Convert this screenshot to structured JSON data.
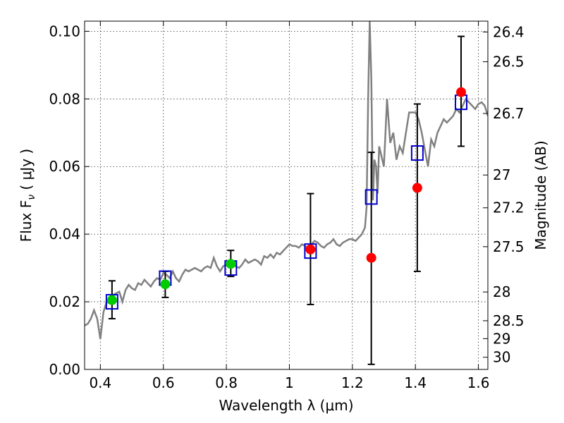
{
  "chart_data": {
    "type": "scatter",
    "xlabel": "Wavelength  λ (μm)",
    "ylabel": "Flux  F",
    "ylabel_sub": "ν",
    "ylabel_unit": "  ( μJy )",
    "y2label": "Magnitude (AB)",
    "xlim": [
      0.35,
      1.63
    ],
    "ylim": [
      0.0,
      0.103
    ],
    "grid": true,
    "x_ticks": [
      {
        "value": 0.4,
        "label": "0.4"
      },
      {
        "value": 0.6,
        "label": "0.6"
      },
      {
        "value": 0.8,
        "label": "0.8"
      },
      {
        "value": 1.0,
        "label": "1"
      },
      {
        "value": 1.2,
        "label": "1.2"
      },
      {
        "value": 1.4,
        "label": "1.4"
      },
      {
        "value": 1.6,
        "label": "1.6"
      }
    ],
    "y_ticks": [
      {
        "value": 0.0,
        "label": "0.00"
      },
      {
        "value": 0.02,
        "label": "0.02"
      },
      {
        "value": 0.04,
        "label": "0.04"
      },
      {
        "value": 0.06,
        "label": "0.06"
      },
      {
        "value": 0.08,
        "label": "0.08"
      },
      {
        "value": 0.1,
        "label": "0.10"
      }
    ],
    "y2_ticks": [
      {
        "flux": 0.0998,
        "label": "26.4"
      },
      {
        "flux": 0.091,
        "label": "26.5"
      },
      {
        "flux": 0.0757,
        "label": "26.7"
      },
      {
        "flux": 0.0575,
        "label": "27"
      },
      {
        "flux": 0.0478,
        "label": "27.2"
      },
      {
        "flux": 0.0363,
        "label": "27.5"
      },
      {
        "flux": 0.0229,
        "label": "28"
      },
      {
        "flux": 0.0144,
        "label": "28.5"
      },
      {
        "flux": 0.0091,
        "label": "29"
      },
      {
        "flux": 0.0036,
        "label": "30"
      }
    ],
    "series": [
      {
        "kind": "line",
        "color": "#808080",
        "points": [
          [
            0.35,
            0.013
          ],
          [
            0.36,
            0.0135
          ],
          [
            0.37,
            0.015
          ],
          [
            0.38,
            0.0175
          ],
          [
            0.39,
            0.015
          ],
          [
            0.4,
            0.009
          ],
          [
            0.41,
            0.017
          ],
          [
            0.42,
            0.02
          ],
          [
            0.43,
            0.0195
          ],
          [
            0.44,
            0.022
          ],
          [
            0.45,
            0.0225
          ],
          [
            0.46,
            0.023
          ],
          [
            0.47,
            0.02
          ],
          [
            0.48,
            0.0235
          ],
          [
            0.49,
            0.025
          ],
          [
            0.5,
            0.024
          ],
          [
            0.51,
            0.0235
          ],
          [
            0.52,
            0.0255
          ],
          [
            0.53,
            0.025
          ],
          [
            0.54,
            0.0265
          ],
          [
            0.55,
            0.0255
          ],
          [
            0.56,
            0.0245
          ],
          [
            0.57,
            0.026
          ],
          [
            0.58,
            0.027
          ],
          [
            0.59,
            0.0265
          ],
          [
            0.6,
            0.0285
          ],
          [
            0.61,
            0.028
          ],
          [
            0.62,
            0.027
          ],
          [
            0.63,
            0.029
          ],
          [
            0.64,
            0.027
          ],
          [
            0.65,
            0.026
          ],
          [
            0.66,
            0.028
          ],
          [
            0.67,
            0.0295
          ],
          [
            0.68,
            0.029
          ],
          [
            0.69,
            0.0295
          ],
          [
            0.7,
            0.03
          ],
          [
            0.71,
            0.0295
          ],
          [
            0.72,
            0.029
          ],
          [
            0.73,
            0.03
          ],
          [
            0.74,
            0.0305
          ],
          [
            0.75,
            0.03
          ],
          [
            0.76,
            0.033
          ],
          [
            0.77,
            0.0305
          ],
          [
            0.78,
            0.029
          ],
          [
            0.79,
            0.0305
          ],
          [
            0.8,
            0.031
          ],
          [
            0.81,
            0.031
          ],
          [
            0.82,
            0.0315
          ],
          [
            0.83,
            0.0305
          ],
          [
            0.84,
            0.03
          ],
          [
            0.85,
            0.031
          ],
          [
            0.86,
            0.0325
          ],
          [
            0.87,
            0.0315
          ],
          [
            0.88,
            0.032
          ],
          [
            0.89,
            0.0325
          ],
          [
            0.9,
            0.032
          ],
          [
            0.91,
            0.031
          ],
          [
            0.92,
            0.0335
          ],
          [
            0.93,
            0.033
          ],
          [
            0.94,
            0.034
          ],
          [
            0.95,
            0.033
          ],
          [
            0.96,
            0.0345
          ],
          [
            0.97,
            0.034
          ],
          [
            0.98,
            0.035
          ],
          [
            0.99,
            0.036
          ],
          [
            1.0,
            0.037
          ],
          [
            1.01,
            0.0365
          ],
          [
            1.02,
            0.0365
          ],
          [
            1.03,
            0.036
          ],
          [
            1.04,
            0.037
          ],
          [
            1.05,
            0.0365
          ],
          [
            1.06,
            0.0355
          ],
          [
            1.07,
            0.037
          ],
          [
            1.08,
            0.038
          ],
          [
            1.09,
            0.0375
          ],
          [
            1.1,
            0.0365
          ],
          [
            1.11,
            0.036
          ],
          [
            1.12,
            0.037
          ],
          [
            1.13,
            0.0375
          ],
          [
            1.14,
            0.0385
          ],
          [
            1.15,
            0.037
          ],
          [
            1.16,
            0.0365
          ],
          [
            1.17,
            0.0375
          ],
          [
            1.18,
            0.038
          ],
          [
            1.19,
            0.0385
          ],
          [
            1.2,
            0.0385
          ],
          [
            1.21,
            0.038
          ],
          [
            1.22,
            0.039
          ],
          [
            1.23,
            0.04
          ],
          [
            1.24,
            0.042
          ],
          [
            1.245,
            0.048
          ],
          [
            1.25,
            0.08
          ],
          [
            1.255,
            0.103
          ],
          [
            1.26,
            0.086
          ],
          [
            1.265,
            0.05
          ],
          [
            1.27,
            0.062
          ],
          [
            1.275,
            0.06
          ],
          [
            1.28,
            0.052
          ],
          [
            1.285,
            0.066
          ],
          [
            1.29,
            0.064
          ],
          [
            1.3,
            0.06
          ],
          [
            1.305,
            0.07
          ],
          [
            1.31,
            0.08
          ],
          [
            1.32,
            0.067
          ],
          [
            1.33,
            0.07
          ],
          [
            1.34,
            0.062
          ],
          [
            1.35,
            0.066
          ],
          [
            1.36,
            0.064
          ],
          [
            1.37,
            0.07
          ],
          [
            1.38,
            0.076
          ],
          [
            1.39,
            0.076
          ],
          [
            1.4,
            0.076
          ],
          [
            1.41,
            0.074
          ],
          [
            1.42,
            0.07
          ],
          [
            1.43,
            0.065
          ],
          [
            1.44,
            0.06
          ],
          [
            1.45,
            0.068
          ],
          [
            1.46,
            0.066
          ],
          [
            1.47,
            0.07
          ],
          [
            1.48,
            0.072
          ],
          [
            1.49,
            0.074
          ],
          [
            1.5,
            0.073
          ],
          [
            1.51,
            0.074
          ],
          [
            1.52,
            0.075
          ],
          [
            1.53,
            0.077
          ],
          [
            1.54,
            0.076
          ],
          [
            1.55,
            0.078
          ],
          [
            1.56,
            0.08
          ],
          [
            1.57,
            0.079
          ],
          [
            1.58,
            0.078
          ],
          [
            1.59,
            0.077
          ],
          [
            1.6,
            0.0785
          ],
          [
            1.61,
            0.079
          ],
          [
            1.62,
            0.078
          ],
          [
            1.63,
            0.075
          ]
        ]
      },
      {
        "kind": "errorbars",
        "color": "#000000",
        "points": [
          {
            "x": 0.437,
            "low": 0.015,
            "high": 0.0262
          },
          {
            "x": 0.606,
            "low": 0.0213,
            "high": 0.029
          },
          {
            "x": 0.814,
            "low": 0.0275,
            "high": 0.0352
          },
          {
            "x": 1.067,
            "low": 0.0192,
            "high": 0.052
          },
          {
            "x": 1.26,
            "low": 0.0015,
            "high": 0.0642
          },
          {
            "x": 1.406,
            "low": 0.029,
            "high": 0.0785
          },
          {
            "x": 1.545,
            "low": 0.066,
            "high": 0.0985
          }
        ]
      },
      {
        "kind": "squares",
        "color": "#0000cc",
        "points": [
          [
            0.437,
            0.02
          ],
          [
            0.606,
            0.027
          ],
          [
            0.814,
            0.03
          ],
          [
            1.067,
            0.035
          ],
          [
            1.26,
            0.051
          ],
          [
            1.406,
            0.064
          ],
          [
            1.545,
            0.079
          ]
        ]
      },
      {
        "kind": "dots",
        "color": "#00cc00",
        "points": [
          [
            0.437,
            0.0205
          ],
          [
            0.606,
            0.0252
          ],
          [
            0.814,
            0.0312
          ]
        ]
      },
      {
        "kind": "dots",
        "color": "#ff0000",
        "points": [
          [
            1.067,
            0.0355
          ],
          [
            1.26,
            0.033
          ],
          [
            1.406,
            0.0537
          ],
          [
            1.545,
            0.082
          ]
        ]
      }
    ]
  }
}
